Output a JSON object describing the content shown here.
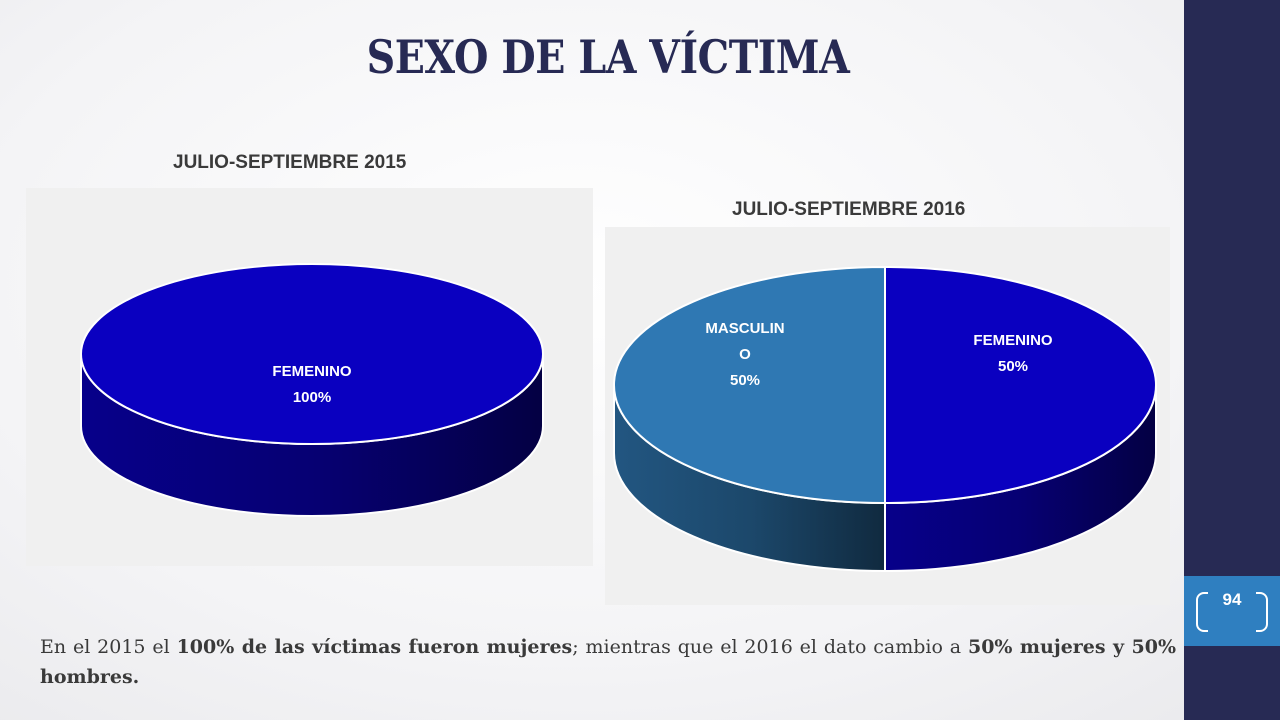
{
  "slide": {
    "title": "SEXO DE LA VÍCTIMA",
    "page_number": "94",
    "colors": {
      "sidebar": "#272a54",
      "badge": "#2f7fc0",
      "femenino": "#0a00c0",
      "masculino": "#2f78b3"
    }
  },
  "caption": {
    "p1": "En el 2015 el ",
    "b1": "100% de las víctimas fueron mujeres",
    "p2": "; mientras que el 2016 el dato cambio a ",
    "b2": "50% mujeres y 50% hombres."
  },
  "chart_data": [
    {
      "type": "pie",
      "title": "JULIO-SEPTIEMBRE 2015",
      "slices": [
        {
          "label": "FEMENINO",
          "value": 100,
          "value_label": "100%",
          "color": "#0a00c0"
        }
      ]
    },
    {
      "type": "pie",
      "title": "JULIO-SEPTIEMBRE 2016",
      "slices": [
        {
          "label": "FEMENINO",
          "value": 50,
          "value_label": "50%",
          "color": "#0a00c0"
        },
        {
          "label": "MASCULINO",
          "label_lines": [
            "MASCULIN",
            "O"
          ],
          "value": 50,
          "value_label": "50%",
          "color": "#2f78b3"
        }
      ]
    }
  ]
}
